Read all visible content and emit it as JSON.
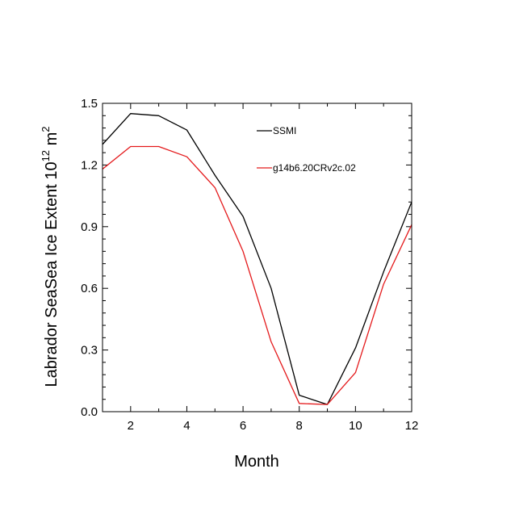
{
  "chart_data": {
    "type": "line",
    "title": "",
    "xlabel": "Month",
    "ylabel_main": "Labrador SeaSea Ice Extent 10",
    "ylabel_exp1": "12",
    "ylabel_unit": " m",
    "ylabel_exp2": "2",
    "xlim": [
      1,
      12
    ],
    "ylim": [
      0.0,
      1.5
    ],
    "xticks": [
      2,
      4,
      6,
      8,
      10,
      12
    ],
    "xtick_labels": [
      "2",
      "4",
      "6",
      "8",
      "10",
      "12"
    ],
    "yticks": [
      0.0,
      0.3,
      0.6,
      0.9,
      1.2,
      1.5
    ],
    "ytick_labels": [
      "0.0",
      "0.3",
      "0.6",
      "0.9",
      "1.2",
      "1.5"
    ],
    "x": [
      1,
      2,
      3,
      4,
      5,
      6,
      7,
      8,
      9,
      10,
      11,
      12
    ],
    "series": [
      {
        "name": "SSMI",
        "color": "#000000",
        "values": [
          1.3,
          1.45,
          1.44,
          1.37,
          1.15,
          0.95,
          0.6,
          0.08,
          0.035,
          0.31,
          0.68,
          1.02
        ]
      },
      {
        "name": "g14b6.20CRv2c.02",
        "color": "#e41a1c",
        "values": [
          1.18,
          1.29,
          1.29,
          1.24,
          1.09,
          0.78,
          0.34,
          0.04,
          0.035,
          0.19,
          0.62,
          0.91
        ]
      }
    ],
    "legend_position": "top-right",
    "grid": false
  }
}
